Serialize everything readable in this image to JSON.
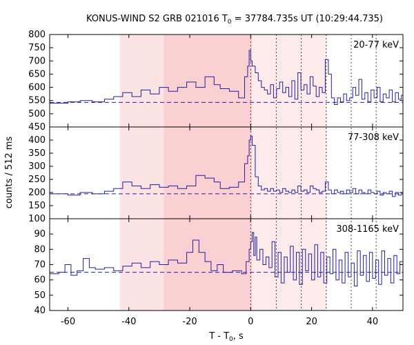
{
  "chart_data": {
    "type": "line",
    "title": {
      "prefix": "KONUS-WIND S2 GRB 021016 T",
      "sub": "0",
      "suffix": " = 37784.735s UT (10:29:44.735)"
    },
    "xlabel": {
      "prefix": "T - T",
      "sub": "0",
      "suffix": ", s"
    },
    "ylabel": "counts / 512 ms",
    "xlim": [
      -66,
      50
    ],
    "xticks": [
      -60,
      -40,
      -20,
      0,
      20,
      40
    ],
    "grid": false,
    "shaded_intervals": [
      {
        "x0": -43,
        "x1": -28.5,
        "color": "#fde4e4"
      },
      {
        "x0": -28.5,
        "x1": 0.4,
        "color": "#fbd0d3"
      },
      {
        "x0": 0.4,
        "x1": 25,
        "color": "#fdeaea"
      }
    ],
    "vertical_markers": [
      0,
      8.4,
      16.6,
      24.8,
      33,
      41.2
    ],
    "panels": [
      {
        "label": "20-77 keV",
        "ylim": [
          450,
          800
        ],
        "yticks": [
          450,
          500,
          550,
          600,
          650,
          700,
          750,
          800
        ],
        "background_level": 543,
        "series": [
          {
            "x": -66,
            "y": 540
          },
          {
            "x": -60,
            "y": 545
          },
          {
            "x": -56,
            "y": 550
          },
          {
            "x": -52,
            "y": 545
          },
          {
            "x": -48,
            "y": 555
          },
          {
            "x": -45,
            "y": 565
          },
          {
            "x": -42,
            "y": 580
          },
          {
            "x": -39,
            "y": 565
          },
          {
            "x": -36,
            "y": 590
          },
          {
            "x": -33,
            "y": 575
          },
          {
            "x": -30,
            "y": 600
          },
          {
            "x": -27,
            "y": 585
          },
          {
            "x": -24,
            "y": 600
          },
          {
            "x": -21,
            "y": 620
          },
          {
            "x": -18,
            "y": 600
          },
          {
            "x": -15,
            "y": 640
          },
          {
            "x": -12,
            "y": 610
          },
          {
            "x": -10,
            "y": 595
          },
          {
            "x": -7,
            "y": 585
          },
          {
            "x": -4,
            "y": 560
          },
          {
            "x": -2,
            "y": 640
          },
          {
            "x": -1,
            "y": 680
          },
          {
            "x": -0.5,
            "y": 740
          },
          {
            "x": 0,
            "y": 700
          },
          {
            "x": 0.5,
            "y": 680
          },
          {
            "x": 1.5,
            "y": 655
          },
          {
            "x": 2.5,
            "y": 625
          },
          {
            "x": 3.5,
            "y": 600
          },
          {
            "x": 4.5,
            "y": 590
          },
          {
            "x": 5.5,
            "y": 575
          },
          {
            "x": 6.5,
            "y": 610
          },
          {
            "x": 7.5,
            "y": 560
          },
          {
            "x": 8.5,
            "y": 595
          },
          {
            "x": 9.5,
            "y": 620
          },
          {
            "x": 10.5,
            "y": 580
          },
          {
            "x": 11.5,
            "y": 600
          },
          {
            "x": 12.5,
            "y": 565
          },
          {
            "x": 13.5,
            "y": 625
          },
          {
            "x": 14.5,
            "y": 555
          },
          {
            "x": 15.5,
            "y": 655
          },
          {
            "x": 16.5,
            "y": 590
          },
          {
            "x": 17.5,
            "y": 610
          },
          {
            "x": 18.5,
            "y": 575
          },
          {
            "x": 19.5,
            "y": 640
          },
          {
            "x": 20.5,
            "y": 605
          },
          {
            "x": 21.5,
            "y": 565
          },
          {
            "x": 22.5,
            "y": 600
          },
          {
            "x": 23.5,
            "y": 580
          },
          {
            "x": 24.5,
            "y": 705
          },
          {
            "x": 25.5,
            "y": 650
          },
          {
            "x": 26.5,
            "y": 560
          },
          {
            "x": 27.5,
            "y": 535
          },
          {
            "x": 28.5,
            "y": 560
          },
          {
            "x": 29.5,
            "y": 545
          },
          {
            "x": 30.5,
            "y": 575
          },
          {
            "x": 31.5,
            "y": 550
          },
          {
            "x": 32.5,
            "y": 560
          },
          {
            "x": 33.5,
            "y": 600
          },
          {
            "x": 34.5,
            "y": 570
          },
          {
            "x": 35.5,
            "y": 630
          },
          {
            "x": 36.5,
            "y": 555
          },
          {
            "x": 37.5,
            "y": 580
          },
          {
            "x": 38.5,
            "y": 545
          },
          {
            "x": 39.5,
            "y": 590
          },
          {
            "x": 40.5,
            "y": 560
          },
          {
            "x": 41.5,
            "y": 600
          },
          {
            "x": 42.5,
            "y": 545
          },
          {
            "x": 43.5,
            "y": 575
          },
          {
            "x": 44.5,
            "y": 560
          },
          {
            "x": 45.5,
            "y": 590
          },
          {
            "x": 46.5,
            "y": 545
          },
          {
            "x": 47.5,
            "y": 580
          },
          {
            "x": 48.5,
            "y": 555
          },
          {
            "x": 49.5,
            "y": 570
          }
        ]
      },
      {
        "label": "77-308 keV",
        "ylim": [
          100,
          450
        ],
        "yticks": [
          100,
          150,
          200,
          250,
          300,
          350,
          400
        ],
        "background_level": 195,
        "series": [
          {
            "x": -66,
            "y": 195
          },
          {
            "x": -60,
            "y": 190
          },
          {
            "x": -56,
            "y": 200
          },
          {
            "x": -52,
            "y": 195
          },
          {
            "x": -48,
            "y": 205
          },
          {
            "x": -45,
            "y": 215
          },
          {
            "x": -42,
            "y": 240
          },
          {
            "x": -39,
            "y": 225
          },
          {
            "x": -36,
            "y": 215
          },
          {
            "x": -33,
            "y": 230
          },
          {
            "x": -30,
            "y": 220
          },
          {
            "x": -27,
            "y": 225
          },
          {
            "x": -24,
            "y": 215
          },
          {
            "x": -21,
            "y": 225
          },
          {
            "x": -18,
            "y": 265
          },
          {
            "x": -15,
            "y": 255
          },
          {
            "x": -12,
            "y": 240
          },
          {
            "x": -10,
            "y": 215
          },
          {
            "x": -7,
            "y": 220
          },
          {
            "x": -4,
            "y": 240
          },
          {
            "x": -2,
            "y": 310
          },
          {
            "x": -1,
            "y": 340
          },
          {
            "x": -0.5,
            "y": 400
          },
          {
            "x": 0,
            "y": 415
          },
          {
            "x": 0.5,
            "y": 380
          },
          {
            "x": 1.5,
            "y": 260
          },
          {
            "x": 2.5,
            "y": 225
          },
          {
            "x": 3.5,
            "y": 210
          },
          {
            "x": 4.5,
            "y": 215
          },
          {
            "x": 5.5,
            "y": 205
          },
          {
            "x": 6.5,
            "y": 215
          },
          {
            "x": 7.5,
            "y": 205
          },
          {
            "x": 8.5,
            "y": 210
          },
          {
            "x": 9.5,
            "y": 200
          },
          {
            "x": 10.5,
            "y": 215
          },
          {
            "x": 11.5,
            "y": 205
          },
          {
            "x": 12.5,
            "y": 200
          },
          {
            "x": 13.5,
            "y": 210
          },
          {
            "x": 14.5,
            "y": 200
          },
          {
            "x": 15.5,
            "y": 225
          },
          {
            "x": 16.5,
            "y": 205
          },
          {
            "x": 17.5,
            "y": 210
          },
          {
            "x": 18.5,
            "y": 200
          },
          {
            "x": 19.5,
            "y": 225
          },
          {
            "x": 20.5,
            "y": 215
          },
          {
            "x": 21.5,
            "y": 210
          },
          {
            "x": 22.5,
            "y": 200
          },
          {
            "x": 23.5,
            "y": 205
          },
          {
            "x": 24.5,
            "y": 240
          },
          {
            "x": 25.5,
            "y": 210
          },
          {
            "x": 26.5,
            "y": 195
          },
          {
            "x": 27.5,
            "y": 210
          },
          {
            "x": 28.5,
            "y": 200
          },
          {
            "x": 29.5,
            "y": 205
          },
          {
            "x": 30.5,
            "y": 195
          },
          {
            "x": 31.5,
            "y": 210
          },
          {
            "x": 32.5,
            "y": 200
          },
          {
            "x": 33.5,
            "y": 215
          },
          {
            "x": 34.5,
            "y": 195
          },
          {
            "x": 35.5,
            "y": 210
          },
          {
            "x": 36.5,
            "y": 200
          },
          {
            "x": 37.5,
            "y": 195
          },
          {
            "x": 38.5,
            "y": 210
          },
          {
            "x": 39.5,
            "y": 200
          },
          {
            "x": 40.5,
            "y": 195
          },
          {
            "x": 41.5,
            "y": 205
          },
          {
            "x": 42.5,
            "y": 190
          },
          {
            "x": 43.5,
            "y": 200
          },
          {
            "x": 44.5,
            "y": 195
          },
          {
            "x": 45.5,
            "y": 205
          },
          {
            "x": 46.5,
            "y": 185
          },
          {
            "x": 47.5,
            "y": 200
          },
          {
            "x": 48.5,
            "y": 190
          },
          {
            "x": 49.5,
            "y": 200
          }
        ]
      },
      {
        "label": "308-1165 keV",
        "ylim": [
          40,
          100
        ],
        "yticks": [
          40,
          50,
          60,
          70,
          80,
          90
        ],
        "background_level": 65,
        "series": [
          {
            "x": -66,
            "y": 64
          },
          {
            "x": -63,
            "y": 65
          },
          {
            "x": -61,
            "y": 70
          },
          {
            "x": -59,
            "y": 63
          },
          {
            "x": -57,
            "y": 66
          },
          {
            "x": -55,
            "y": 74
          },
          {
            "x": -53,
            "y": 68
          },
          {
            "x": -51,
            "y": 67
          },
          {
            "x": -48,
            "y": 68
          },
          {
            "x": -45,
            "y": 66
          },
          {
            "x": -42,
            "y": 69
          },
          {
            "x": -39,
            "y": 71
          },
          {
            "x": -36,
            "y": 68
          },
          {
            "x": -33,
            "y": 72
          },
          {
            "x": -30,
            "y": 70
          },
          {
            "x": -27,
            "y": 73
          },
          {
            "x": -24,
            "y": 71
          },
          {
            "x": -21,
            "y": 78
          },
          {
            "x": -19,
            "y": 86
          },
          {
            "x": -17,
            "y": 78
          },
          {
            "x": -15,
            "y": 72
          },
          {
            "x": -13,
            "y": 66
          },
          {
            "x": -11,
            "y": 70
          },
          {
            "x": -9,
            "y": 65
          },
          {
            "x": -6,
            "y": 66
          },
          {
            "x": -3,
            "y": 64
          },
          {
            "x": -1.5,
            "y": 72
          },
          {
            "x": -0.5,
            "y": 80
          },
          {
            "x": 0,
            "y": 85
          },
          {
            "x": 0.5,
            "y": 91
          },
          {
            "x": 1,
            "y": 76
          },
          {
            "x": 1.5,
            "y": 88
          },
          {
            "x": 2,
            "y": 73
          },
          {
            "x": 3,
            "y": 80
          },
          {
            "x": 4,
            "y": 70
          },
          {
            "x": 5,
            "y": 75
          },
          {
            "x": 6,
            "y": 68
          },
          {
            "x": 7,
            "y": 85
          },
          {
            "x": 8,
            "y": 62
          },
          {
            "x": 9,
            "y": 78
          },
          {
            "x": 10,
            "y": 58
          },
          {
            "x": 11,
            "y": 75
          },
          {
            "x": 12,
            "y": 65
          },
          {
            "x": 13,
            "y": 82
          },
          {
            "x": 14,
            "y": 60
          },
          {
            "x": 15,
            "y": 78
          },
          {
            "x": 16,
            "y": 57
          },
          {
            "x": 17,
            "y": 80
          },
          {
            "x": 18,
            "y": 66
          },
          {
            "x": 19,
            "y": 77
          },
          {
            "x": 20,
            "y": 60
          },
          {
            "x": 21,
            "y": 83
          },
          {
            "x": 22,
            "y": 62
          },
          {
            "x": 23,
            "y": 78
          },
          {
            "x": 24,
            "y": 58
          },
          {
            "x": 25,
            "y": 75
          },
          {
            "x": 26,
            "y": 64
          },
          {
            "x": 27,
            "y": 80
          },
          {
            "x": 28,
            "y": 60
          },
          {
            "x": 29,
            "y": 73
          },
          {
            "x": 30,
            "y": 58
          },
          {
            "x": 31,
            "y": 78
          },
          {
            "x": 32,
            "y": 62
          },
          {
            "x": 33,
            "y": 71
          },
          {
            "x": 34,
            "y": 56
          },
          {
            "x": 35,
            "y": 79
          },
          {
            "x": 36,
            "y": 63
          },
          {
            "x": 37,
            "y": 76
          },
          {
            "x": 38,
            "y": 59
          },
          {
            "x": 39,
            "y": 78
          },
          {
            "x": 40,
            "y": 61
          },
          {
            "x": 41,
            "y": 73
          },
          {
            "x": 42,
            "y": 57
          },
          {
            "x": 43,
            "y": 79
          },
          {
            "x": 44,
            "y": 63
          },
          {
            "x": 45,
            "y": 74
          },
          {
            "x": 46,
            "y": 58
          },
          {
            "x": 47,
            "y": 76
          },
          {
            "x": 48,
            "y": 64
          },
          {
            "x": 49,
            "y": 72
          }
        ]
      }
    ]
  },
  "colors": {
    "series": "#1f1fa0",
    "marker": "#404040",
    "axis": "#000000"
  }
}
